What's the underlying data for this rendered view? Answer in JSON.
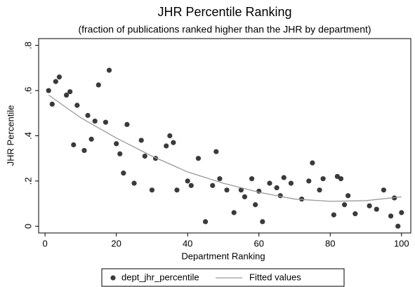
{
  "chart_data": {
    "type": "scatter",
    "title": "JHR Percentile Ranking",
    "subtitle": "(fraction of publications ranked higher than the JHR by department)",
    "x_label": "Department Ranking",
    "y_label": "JHR Percentile",
    "xlim": [
      -1.8,
      102.6
    ],
    "ylim": [
      -0.03,
      0.83
    ],
    "xticks": [
      0,
      20,
      40,
      60,
      80,
      100
    ],
    "yticks": [
      0,
      {
        "value": 0.2,
        "label": ".2"
      },
      {
        "value": 0.4,
        "label": ".4"
      },
      {
        "value": 0.6,
        "label": ".6"
      },
      {
        "value": 0.8,
        "label": ".8"
      }
    ],
    "series": [
      {
        "name": "dept_jhr_percentile",
        "type": "scatter",
        "color": "#3a3a3a",
        "x": [
          1,
          2,
          3,
          4,
          6,
          7,
          8,
          9,
          11,
          12,
          13,
          14,
          15,
          17,
          18,
          20,
          21,
          22,
          23,
          25,
          27,
          28,
          30,
          31,
          34,
          35,
          36,
          37,
          40,
          41,
          43,
          45,
          47,
          48,
          49,
          51,
          53,
          55,
          56,
          58,
          59,
          60,
          61,
          63,
          65,
          66,
          67,
          69,
          72,
          74,
          75,
          77,
          78,
          81,
          82,
          83,
          84,
          85,
          87,
          91,
          93,
          95,
          97,
          98,
          99,
          100
        ],
        "values": [
          0.6,
          0.54,
          0.64,
          0.66,
          0.58,
          0.595,
          0.36,
          0.535,
          0.335,
          0.49,
          0.385,
          0.465,
          0.625,
          0.46,
          0.69,
          0.365,
          0.32,
          0.235,
          0.45,
          0.19,
          0.38,
          0.31,
          0.16,
          0.3,
          0.355,
          0.4,
          0.37,
          0.16,
          0.2,
          0.18,
          0.3,
          0.02,
          0.18,
          0.33,
          0.21,
          0.16,
          0.06,
          0.16,
          0.13,
          0.21,
          0.095,
          0.155,
          0.02,
          0.19,
          0.17,
          0.135,
          0.215,
          0.19,
          0.12,
          0.2,
          0.28,
          0.16,
          0.21,
          0.05,
          0.22,
          0.21,
          0.095,
          0.135,
          0.055,
          0.09,
          0.075,
          0.16,
          0.045,
          0.125,
          0,
          0.06
        ]
      },
      {
        "name": "Fitted values",
        "type": "line",
        "color": "#9a9a9a",
        "x": [
          1,
          10,
          20,
          30,
          40,
          50,
          60,
          70,
          80,
          90,
          100
        ],
        "values": [
          0.58,
          0.48,
          0.39,
          0.31,
          0.24,
          0.19,
          0.15,
          0.12,
          0.11,
          0.113,
          0.13
        ]
      }
    ]
  }
}
